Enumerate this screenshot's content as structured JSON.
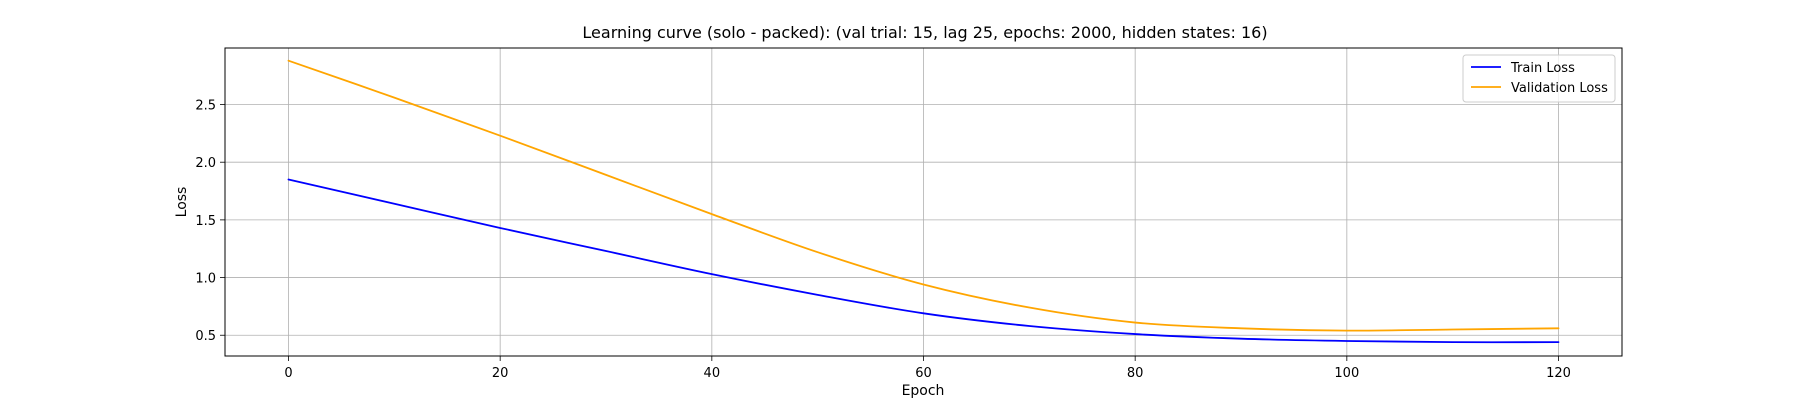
{
  "chart_data": {
    "type": "line",
    "title": "Learning curve (solo - packed): (val trial: 15, lag 25, epochs: 2000, hidden states: 16)",
    "xlabel": "Epoch",
    "ylabel": "Loss",
    "xlim": [
      -6,
      126
    ],
    "ylim": [
      0.32,
      2.99
    ],
    "x_ticks": [
      0,
      20,
      40,
      60,
      80,
      100,
      120
    ],
    "y_ticks": [
      0.5,
      1.0,
      1.5,
      2.0,
      2.5
    ],
    "x_tick_labels": [
      "0",
      "20",
      "40",
      "60",
      "80",
      "100",
      "120"
    ],
    "y_tick_labels": [
      "0.5",
      "1.0",
      "1.5",
      "2.0",
      "2.5"
    ],
    "grid": true,
    "legend": "top-right",
    "x": [
      0,
      10,
      20,
      30,
      40,
      50,
      60,
      70,
      80,
      90,
      100,
      110,
      120
    ],
    "series": [
      {
        "name": "Train Loss",
        "color": "#0000ff",
        "values": [
          1.85,
          1.64,
          1.43,
          1.23,
          1.03,
          0.85,
          0.69,
          0.58,
          0.51,
          0.47,
          0.45,
          0.44,
          0.44
        ]
      },
      {
        "name": "Validation Loss",
        "color": "#ffa500",
        "values": [
          2.88,
          2.56,
          2.23,
          1.89,
          1.55,
          1.22,
          0.94,
          0.74,
          0.61,
          0.56,
          0.54,
          0.55,
          0.56
        ]
      }
    ]
  }
}
